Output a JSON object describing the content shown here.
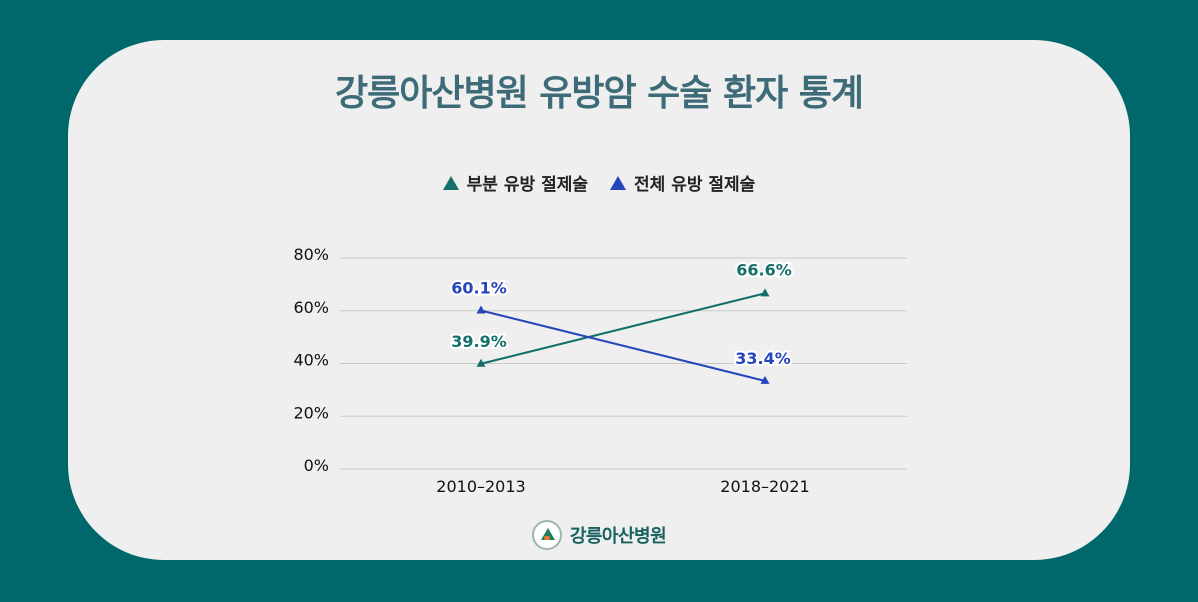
{
  "title": "강릉아산병원 유방암 수술 환자 통계",
  "legend": {
    "partial": "부분 유방 절제술",
    "total": "전체 유방 절제술"
  },
  "brand": "강릉아산병원",
  "colors": {
    "background": "#00686a",
    "card": "#efefef",
    "title": "#3d6b78",
    "partial": "#136f6a",
    "total": "#2846bb",
    "grid": "#c8c8c8"
  },
  "chart_data": {
    "type": "line",
    "title": "강릉아산병원 유방암 수술 환자 통계",
    "categories": [
      "2010–2013",
      "2018–2021"
    ],
    "series": [
      {
        "name": "부분 유방 절제술",
        "values": [
          39.9,
          66.6
        ],
        "labels": [
          "39.9%",
          "66.6%"
        ],
        "color": "#136f6a",
        "marker": "triangle"
      },
      {
        "name": "전체 유방 절제술",
        "values": [
          60.1,
          33.4
        ],
        "labels": [
          "60.1%",
          "33.4%"
        ],
        "color": "#2846bb",
        "marker": "triangle"
      }
    ],
    "yticks": [
      "0%",
      "20%",
      "40%",
      "60%",
      "80%"
    ],
    "ylim": [
      0,
      80
    ],
    "grid": true,
    "legend_position": "top-center",
    "xlabel": "",
    "ylabel": ""
  }
}
